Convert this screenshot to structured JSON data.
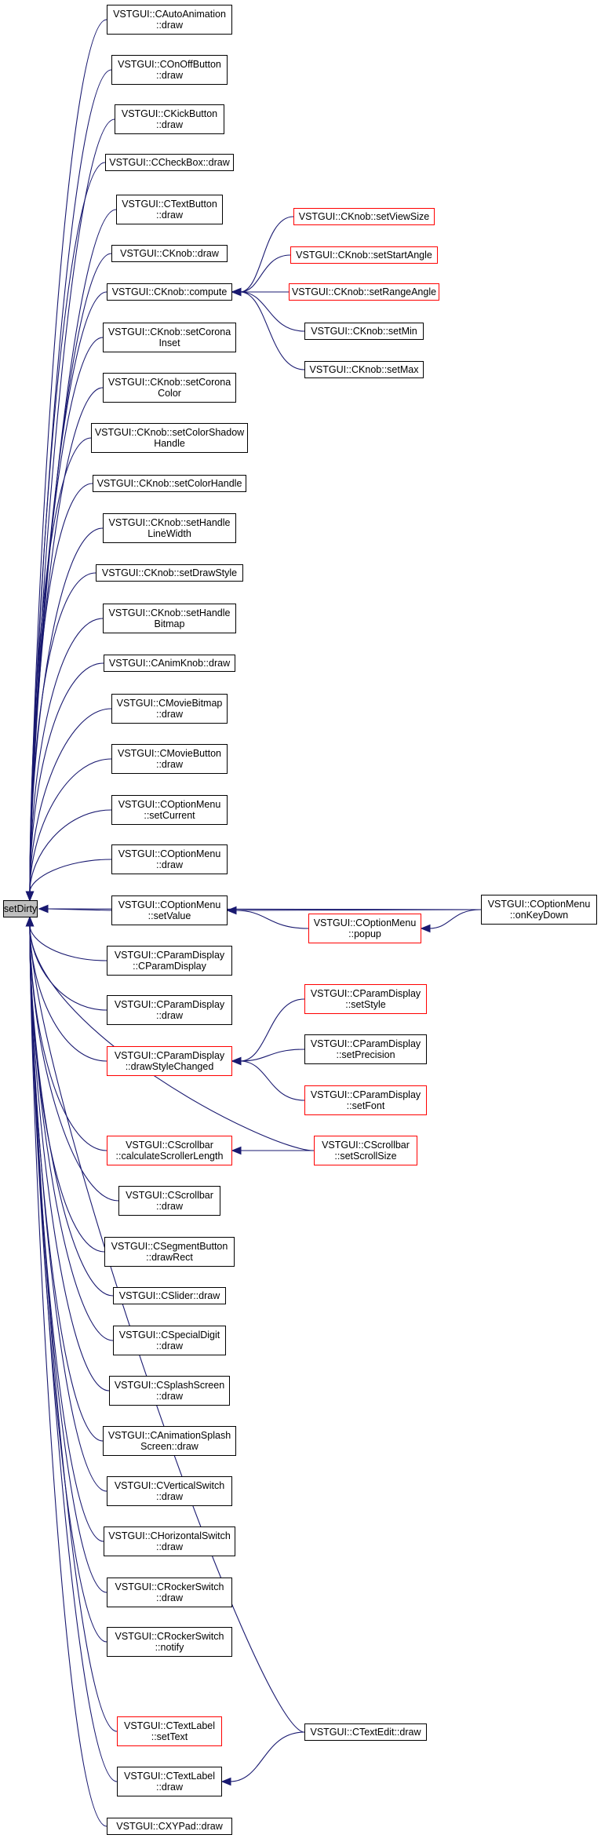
{
  "colors": {
    "edge": "#191970",
    "box_border": "#000000",
    "box_border_truncated": "#ff0000",
    "root_fill": "#bfbfbf",
    "background": "#ffffff"
  },
  "root": {
    "id": "setDirty",
    "lines": [
      "setDirty"
    ]
  },
  "nodes": [
    {
      "id": "CAutoAnimation_draw",
      "lines": [
        "VSTGUI::CAutoAnimation",
        "::draw"
      ],
      "truncated": false
    },
    {
      "id": "COnOffButton_draw",
      "lines": [
        "VSTGUI::COnOffButton",
        "::draw"
      ],
      "truncated": false
    },
    {
      "id": "CKickButton_draw",
      "lines": [
        "VSTGUI::CKickButton",
        "::draw"
      ],
      "truncated": false
    },
    {
      "id": "CCheckBox_draw",
      "lines": [
        "VSTGUI::CCheckBox::draw"
      ],
      "truncated": false
    },
    {
      "id": "CTextButton_draw",
      "lines": [
        "VSTGUI::CTextButton",
        "::draw"
      ],
      "truncated": false
    },
    {
      "id": "CKnob_draw",
      "lines": [
        "VSTGUI::CKnob::draw"
      ],
      "truncated": false
    },
    {
      "id": "CKnob_compute",
      "lines": [
        "VSTGUI::CKnob::compute"
      ],
      "truncated": false
    },
    {
      "id": "CKnob_setCoronaInset",
      "lines": [
        "VSTGUI::CKnob::setCorona",
        "Inset"
      ],
      "truncated": false
    },
    {
      "id": "CKnob_setCoronaColor",
      "lines": [
        "VSTGUI::CKnob::setCorona",
        "Color"
      ],
      "truncated": false
    },
    {
      "id": "CKnob_setColorShadowHandle",
      "lines": [
        "VSTGUI::CKnob::setColorShadow",
        "Handle"
      ],
      "truncated": false
    },
    {
      "id": "CKnob_setColorHandle",
      "lines": [
        "VSTGUI::CKnob::setColorHandle"
      ],
      "truncated": false
    },
    {
      "id": "CKnob_setHandleLineWidth",
      "lines": [
        "VSTGUI::CKnob::setHandle",
        "LineWidth"
      ],
      "truncated": false
    },
    {
      "id": "CKnob_setDrawStyle",
      "lines": [
        "VSTGUI::CKnob::setDrawStyle"
      ],
      "truncated": false
    },
    {
      "id": "CKnob_setHandleBitmap",
      "lines": [
        "VSTGUI::CKnob::setHandle",
        "Bitmap"
      ],
      "truncated": false
    },
    {
      "id": "CAnimKnob_draw",
      "lines": [
        "VSTGUI::CAnimKnob::draw"
      ],
      "truncated": false
    },
    {
      "id": "CMovieBitmap_draw",
      "lines": [
        "VSTGUI::CMovieBitmap",
        "::draw"
      ],
      "truncated": false
    },
    {
      "id": "CMovieButton_draw",
      "lines": [
        "VSTGUI::CMovieButton",
        "::draw"
      ],
      "truncated": false
    },
    {
      "id": "COptionMenu_setCurrent",
      "lines": [
        "VSTGUI::COptionMenu",
        "::setCurrent"
      ],
      "truncated": false
    },
    {
      "id": "COptionMenu_draw",
      "lines": [
        "VSTGUI::COptionMenu",
        "::draw"
      ],
      "truncated": false
    },
    {
      "id": "COptionMenu_setValue",
      "lines": [
        "VSTGUI::COptionMenu",
        "::setValue"
      ],
      "truncated": false
    },
    {
      "id": "CParamDisplay_CParamDisplay",
      "lines": [
        "VSTGUI::CParamDisplay",
        "::CParamDisplay"
      ],
      "truncated": false
    },
    {
      "id": "CParamDisplay_draw",
      "lines": [
        "VSTGUI::CParamDisplay",
        "::draw"
      ],
      "truncated": false
    },
    {
      "id": "CParamDisplay_drawStyleChanged",
      "lines": [
        "VSTGUI::CParamDisplay",
        "::drawStyleChanged"
      ],
      "truncated": true
    },
    {
      "id": "CScrollbar_calculateScrollerLength",
      "lines": [
        "VSTGUI::CScrollbar",
        "::calculateScrollerLength"
      ],
      "truncated": true
    },
    {
      "id": "CScrollbar_draw",
      "lines": [
        "VSTGUI::CScrollbar",
        "::draw"
      ],
      "truncated": false
    },
    {
      "id": "CSegmentButton_drawRect",
      "lines": [
        "VSTGUI::CSegmentButton",
        "::drawRect"
      ],
      "truncated": false
    },
    {
      "id": "CSlider_draw",
      "lines": [
        "VSTGUI::CSlider::draw"
      ],
      "truncated": false
    },
    {
      "id": "CSpecialDigit_draw",
      "lines": [
        "VSTGUI::CSpecialDigit",
        "::draw"
      ],
      "truncated": false
    },
    {
      "id": "CSplashScreen_draw",
      "lines": [
        "VSTGUI::CSplashScreen",
        "::draw"
      ],
      "truncated": false
    },
    {
      "id": "CAnimationSplashScreen_draw",
      "lines": [
        "VSTGUI::CAnimationSplash",
        "Screen::draw"
      ],
      "truncated": false
    },
    {
      "id": "CVerticalSwitch_draw",
      "lines": [
        "VSTGUI::CVerticalSwitch",
        "::draw"
      ],
      "truncated": false
    },
    {
      "id": "CHorizontalSwitch_draw",
      "lines": [
        "VSTGUI::CHorizontalSwitch",
        "::draw"
      ],
      "truncated": false
    },
    {
      "id": "CRockerSwitch_draw",
      "lines": [
        "VSTGUI::CRockerSwitch",
        "::draw"
      ],
      "truncated": false
    },
    {
      "id": "CRockerSwitch_notify",
      "lines": [
        "VSTGUI::CRockerSwitch",
        "::notify"
      ],
      "truncated": false
    },
    {
      "id": "CTextLabel_setText",
      "lines": [
        "VSTGUI::CTextLabel",
        "::setText"
      ],
      "truncated": true
    },
    {
      "id": "CTextLabel_draw",
      "lines": [
        "VSTGUI::CTextLabel",
        "::draw"
      ],
      "truncated": false
    },
    {
      "id": "CXYPad_draw",
      "lines": [
        "VSTGUI::CXYPad::draw"
      ],
      "truncated": false
    },
    {
      "id": "CKnob_setViewSize",
      "lines": [
        "VSTGUI::CKnob::setViewSize"
      ],
      "truncated": true
    },
    {
      "id": "CKnob_setStartAngle",
      "lines": [
        "VSTGUI::CKnob::setStartAngle"
      ],
      "truncated": true
    },
    {
      "id": "CKnob_setRangeAngle",
      "lines": [
        "VSTGUI::CKnob::setRangeAngle"
      ],
      "truncated": true
    },
    {
      "id": "CKnob_setMin",
      "lines": [
        "VSTGUI::CKnob::setMin"
      ],
      "truncated": false
    },
    {
      "id": "CKnob_setMax",
      "lines": [
        "VSTGUI::CKnob::setMax"
      ],
      "truncated": false
    },
    {
      "id": "COptionMenu_popup",
      "lines": [
        "VSTGUI::COptionMenu",
        "::popup"
      ],
      "truncated": true
    },
    {
      "id": "COptionMenu_onKeyDown",
      "lines": [
        "VSTGUI::COptionMenu",
        "::onKeyDown"
      ],
      "truncated": false
    },
    {
      "id": "CParamDisplay_setStyle",
      "lines": [
        "VSTGUI::CParamDisplay",
        "::setStyle"
      ],
      "truncated": true
    },
    {
      "id": "CParamDisplay_setPrecision",
      "lines": [
        "VSTGUI::CParamDisplay",
        "::setPrecision"
      ],
      "truncated": false
    },
    {
      "id": "CParamDisplay_setFont",
      "lines": [
        "VSTGUI::CParamDisplay",
        "::setFont"
      ],
      "truncated": true
    },
    {
      "id": "CScrollbar_setScrollSize",
      "lines": [
        "VSTGUI::CScrollbar",
        "::setScrollSize"
      ],
      "truncated": true
    },
    {
      "id": "CTextEdit_draw",
      "lines": [
        "VSTGUI::CTextEdit::draw"
      ],
      "truncated": false
    }
  ],
  "edges": [
    [
      "CAutoAnimation_draw",
      "setDirty"
    ],
    [
      "COnOffButton_draw",
      "setDirty"
    ],
    [
      "CKickButton_draw",
      "setDirty"
    ],
    [
      "CCheckBox_draw",
      "setDirty"
    ],
    [
      "CTextButton_draw",
      "setDirty"
    ],
    [
      "CKnob_draw",
      "setDirty"
    ],
    [
      "CKnob_compute",
      "setDirty"
    ],
    [
      "CKnob_setCoronaInset",
      "setDirty"
    ],
    [
      "CKnob_setCoronaColor",
      "setDirty"
    ],
    [
      "CKnob_setColorShadowHandle",
      "setDirty"
    ],
    [
      "CKnob_setColorHandle",
      "setDirty"
    ],
    [
      "CKnob_setHandleLineWidth",
      "setDirty"
    ],
    [
      "CKnob_setDrawStyle",
      "setDirty"
    ],
    [
      "CKnob_setHandleBitmap",
      "setDirty"
    ],
    [
      "CAnimKnob_draw",
      "setDirty"
    ],
    [
      "CMovieBitmap_draw",
      "setDirty"
    ],
    [
      "CMovieButton_draw",
      "setDirty"
    ],
    [
      "COptionMenu_setCurrent",
      "setDirty"
    ],
    [
      "COptionMenu_draw",
      "setDirty"
    ],
    [
      "COptionMenu_setValue",
      "setDirty"
    ],
    [
      "CParamDisplay_CParamDisplay",
      "setDirty"
    ],
    [
      "CParamDisplay_draw",
      "setDirty"
    ],
    [
      "CParamDisplay_drawStyleChanged",
      "setDirty"
    ],
    [
      "CScrollbar_calculateScrollerLength",
      "setDirty"
    ],
    [
      "CScrollbar_draw",
      "setDirty"
    ],
    [
      "CSegmentButton_drawRect",
      "setDirty"
    ],
    [
      "CSlider_draw",
      "setDirty"
    ],
    [
      "CSpecialDigit_draw",
      "setDirty"
    ],
    [
      "CSplashScreen_draw",
      "setDirty"
    ],
    [
      "CAnimationSplashScreen_draw",
      "setDirty"
    ],
    [
      "CVerticalSwitch_draw",
      "setDirty"
    ],
    [
      "CHorizontalSwitch_draw",
      "setDirty"
    ],
    [
      "CRockerSwitch_draw",
      "setDirty"
    ],
    [
      "CRockerSwitch_notify",
      "setDirty"
    ],
    [
      "CTextLabel_setText",
      "setDirty"
    ],
    [
      "CTextLabel_draw",
      "setDirty"
    ],
    [
      "CXYPad_draw",
      "setDirty"
    ],
    [
      "CScrollbar_setScrollSize",
      "setDirty"
    ],
    [
      "CTextEdit_draw",
      "setDirty"
    ],
    [
      "COptionMenu_onKeyDown",
      "setDirty"
    ],
    [
      "CKnob_setViewSize",
      "CKnob_compute"
    ],
    [
      "CKnob_setStartAngle",
      "CKnob_compute"
    ],
    [
      "CKnob_setRangeAngle",
      "CKnob_compute"
    ],
    [
      "CKnob_setMin",
      "CKnob_compute"
    ],
    [
      "CKnob_setMax",
      "CKnob_compute"
    ],
    [
      "COptionMenu_popup",
      "COptionMenu_setValue"
    ],
    [
      "COptionMenu_onKeyDown",
      "COptionMenu_setValue"
    ],
    [
      "COptionMenu_onKeyDown",
      "COptionMenu_popup"
    ],
    [
      "CParamDisplay_setStyle",
      "CParamDisplay_drawStyleChanged"
    ],
    [
      "CParamDisplay_setPrecision",
      "CParamDisplay_drawStyleChanged"
    ],
    [
      "CParamDisplay_setFont",
      "CParamDisplay_drawStyleChanged"
    ],
    [
      "CScrollbar_setScrollSize",
      "CScrollbar_calculateScrollerLength"
    ],
    [
      "CTextEdit_draw",
      "CTextLabel_draw"
    ]
  ]
}
